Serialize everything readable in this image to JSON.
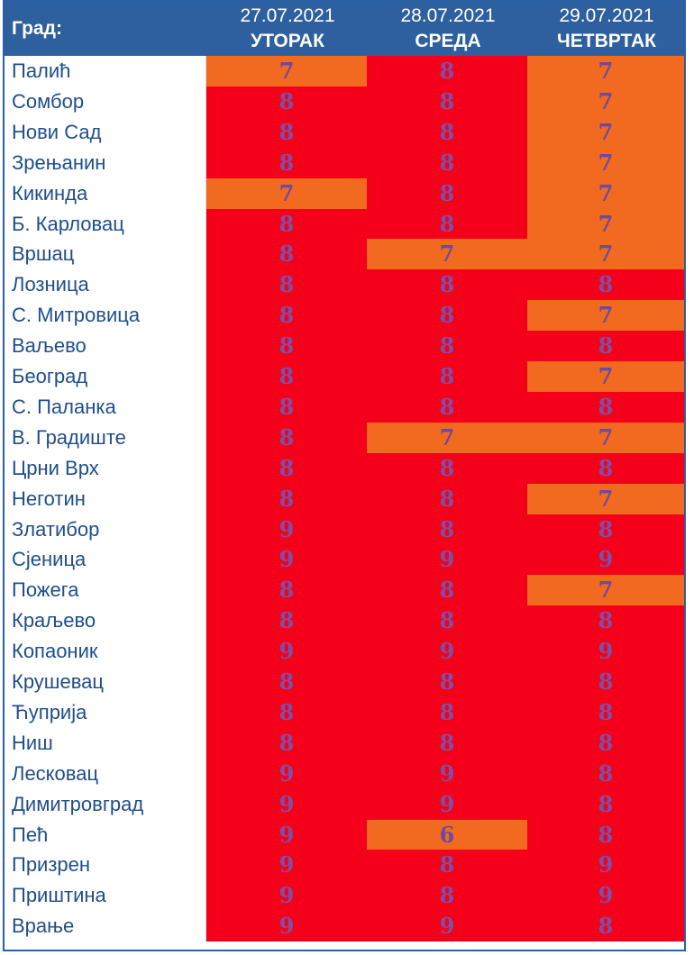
{
  "header": {
    "city_label": "Град:",
    "columns": [
      {
        "date": "27.07.2021",
        "day": "УТОРАК"
      },
      {
        "date": "28.07.2021",
        "day": "СРЕДА"
      },
      {
        "date": "29.07.2021",
        "day": "ЧЕТВРТАК"
      }
    ]
  },
  "colors": {
    "header_bg": "#2e5f9e",
    "level_red": "#f5001a",
    "level_orange": "#f26a1f",
    "number_text": "#7e4fa6",
    "city_text": "#1f4e8c"
  },
  "rows": [
    {
      "city": "Палић",
      "values": [
        "7",
        "8",
        "7"
      ]
    },
    {
      "city": "Сомбор",
      "values": [
        "8",
        "8",
        "7"
      ]
    },
    {
      "city": "Нови Сад",
      "values": [
        "8",
        "8",
        "7"
      ]
    },
    {
      "city": "Зрењанин",
      "values": [
        "8",
        "8",
        "7"
      ]
    },
    {
      "city": "Кикинда",
      "values": [
        "7",
        "8",
        "7"
      ]
    },
    {
      "city": "Б. Карловац",
      "values": [
        "8",
        "8",
        "7"
      ]
    },
    {
      "city": "Вршац",
      "values": [
        "8",
        "7",
        "7"
      ]
    },
    {
      "city": "Лозница",
      "values": [
        "8",
        "8",
        "8"
      ]
    },
    {
      "city": "С. Митровица",
      "values": [
        "8",
        "8",
        "7"
      ]
    },
    {
      "city": "Ваљево",
      "values": [
        "8",
        "8",
        "8"
      ]
    },
    {
      "city": "Београд",
      "values": [
        "8",
        "8",
        "7"
      ]
    },
    {
      "city": "С. Паланка",
      "values": [
        "8",
        "8",
        "8"
      ]
    },
    {
      "city": "В. Градиште",
      "values": [
        "8",
        "7",
        "7"
      ]
    },
    {
      "city": "Црни Врх",
      "values": [
        "8",
        "8",
        "8"
      ]
    },
    {
      "city": "Неготин",
      "values": [
        "8",
        "8",
        "7"
      ]
    },
    {
      "city": "Златибор",
      "values": [
        "9",
        "8",
        "8"
      ]
    },
    {
      "city": "Сјеница",
      "values": [
        "9",
        "9",
        "9"
      ]
    },
    {
      "city": "Пожега",
      "values": [
        "8",
        "8",
        "7"
      ]
    },
    {
      "city": "Краљево",
      "values": [
        "8",
        "8",
        "8"
      ]
    },
    {
      "city": "Копаоник",
      "values": [
        "9",
        "9",
        "9"
      ]
    },
    {
      "city": "Крушевац",
      "values": [
        "8",
        "8",
        "8"
      ]
    },
    {
      "city": "Ћуприја",
      "values": [
        "8",
        "8",
        "8"
      ]
    },
    {
      "city": "Ниш",
      "values": [
        "8",
        "8",
        "8"
      ]
    },
    {
      "city": "Лесковац",
      "values": [
        "9",
        "9",
        "8"
      ]
    },
    {
      "city": "Димитровград",
      "values": [
        "9",
        "9",
        "8"
      ]
    },
    {
      "city": "Пећ",
      "values": [
        "9",
        "6",
        "8"
      ]
    },
    {
      "city": "Призрен",
      "values": [
        "9",
        "8",
        "9"
      ]
    },
    {
      "city": "Приштина",
      "values": [
        "9",
        "8",
        "9"
      ]
    },
    {
      "city": "Врање",
      "values": [
        "9",
        "9",
        "8"
      ]
    }
  ]
}
